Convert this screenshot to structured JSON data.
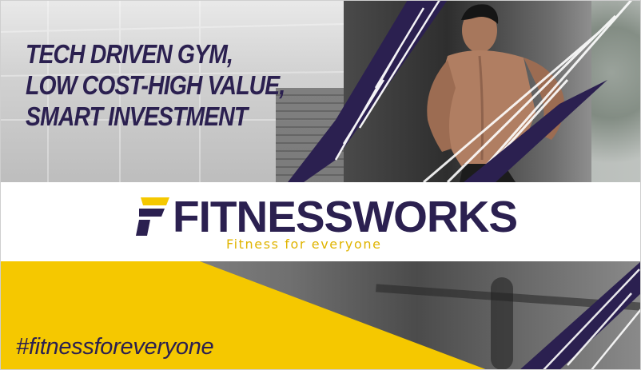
{
  "headline": {
    "lines": [
      "TECH DRIVEN GYM,",
      "LOW COST-HIGH VALUE,",
      "SMART INVESTMENT"
    ]
  },
  "brand": {
    "name": "FITNESSWORKS",
    "tagline": "Fitness for everyone",
    "logo_icon": "f-letter-logo-icon"
  },
  "hashtag": "#fitnessforeveryone",
  "colors": {
    "brand_purple": "#2b2050",
    "brand_yellow": "#f5c800",
    "tagline_yellow": "#e0b400",
    "band_white": "#ffffff"
  }
}
